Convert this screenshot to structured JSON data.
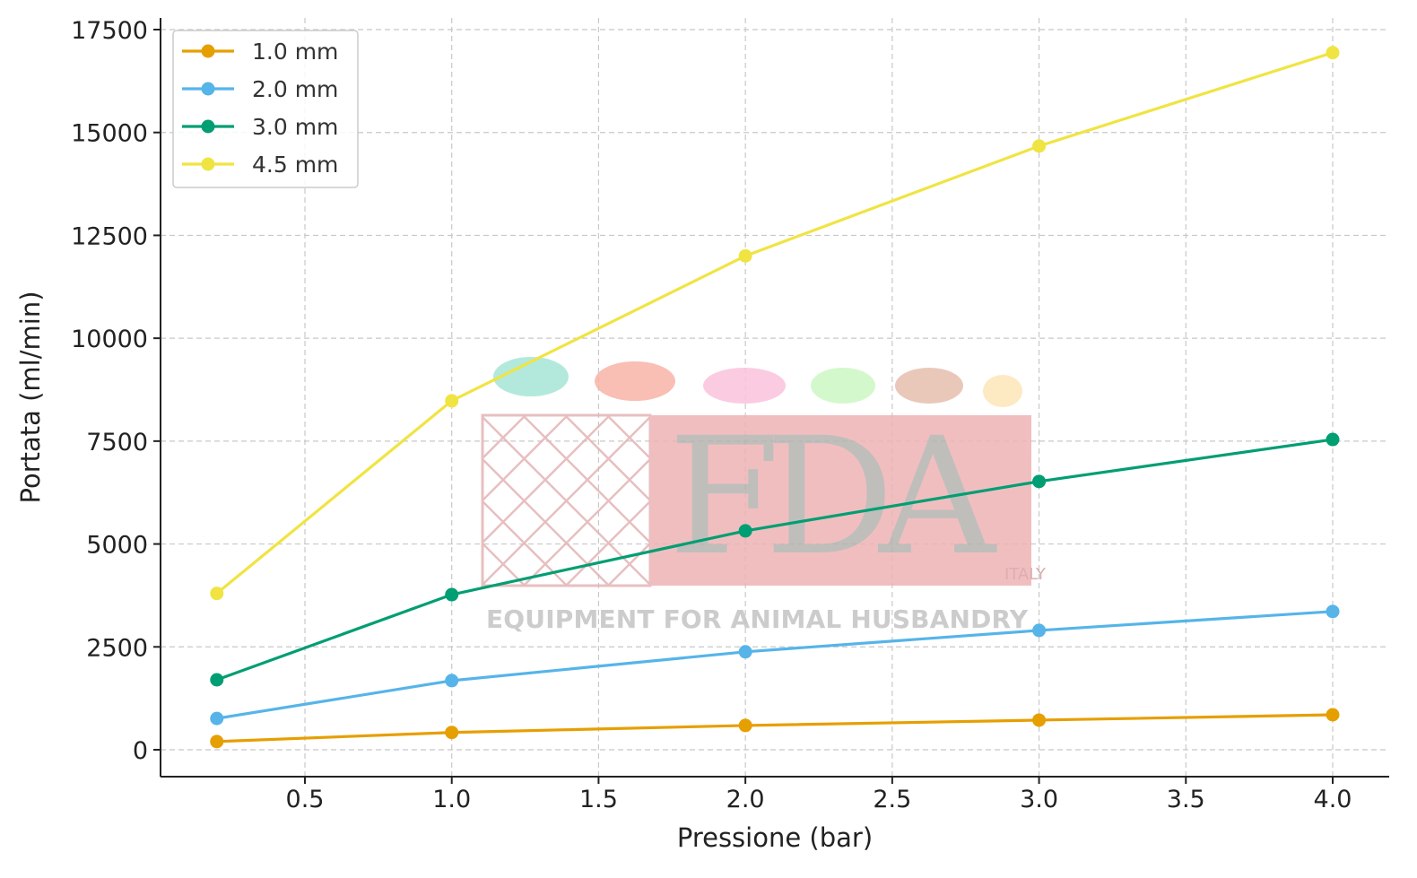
{
  "chart_data": {
    "type": "line",
    "title": "",
    "xlabel": "Pressione (bar)",
    "ylabel": "Portata (ml/min)",
    "xlim": [
      0.01,
      4.19
    ],
    "ylim": [
      -700,
      17800
    ],
    "xticks": [
      0.5,
      1.0,
      1.5,
      2.0,
      2.5,
      3.0,
      3.5,
      4.0
    ],
    "xtick_labels": [
      "0.5",
      "1.0",
      "1.5",
      "2.0",
      "2.5",
      "3.0",
      "3.5",
      "4.0"
    ],
    "yticks": [
      0,
      2500,
      5000,
      7500,
      10000,
      12500,
      15000,
      17500
    ],
    "ytick_labels": [
      "0",
      "2500",
      "5000",
      "7500",
      "10000",
      "12500",
      "15000",
      "17500"
    ],
    "grid": true,
    "legend_position": "top-left",
    "x": [
      0.2,
      1.0,
      2.0,
      3.0,
      4.0
    ],
    "series": [
      {
        "name": "1.0 mm",
        "color": "#E69F00",
        "values": [
          200,
          420,
          590,
          720,
          850
        ]
      },
      {
        "name": "2.0 mm",
        "color": "#56B4E9",
        "values": [
          760,
          1680,
          2380,
          2900,
          3360
        ]
      },
      {
        "name": "3.0 mm",
        "color": "#009E73",
        "values": [
          1700,
          3770,
          5320,
          6520,
          7540
        ]
      },
      {
        "name": "4.5 mm",
        "color": "#F0E442",
        "values": [
          3800,
          8480,
          12000,
          14670,
          16940
        ]
      }
    ]
  },
  "watermark": {
    "logo_text": "FDA",
    "country": "ITALY",
    "tagline": "EQUIPMENT FOR ANIMAL HUSBANDRY"
  }
}
